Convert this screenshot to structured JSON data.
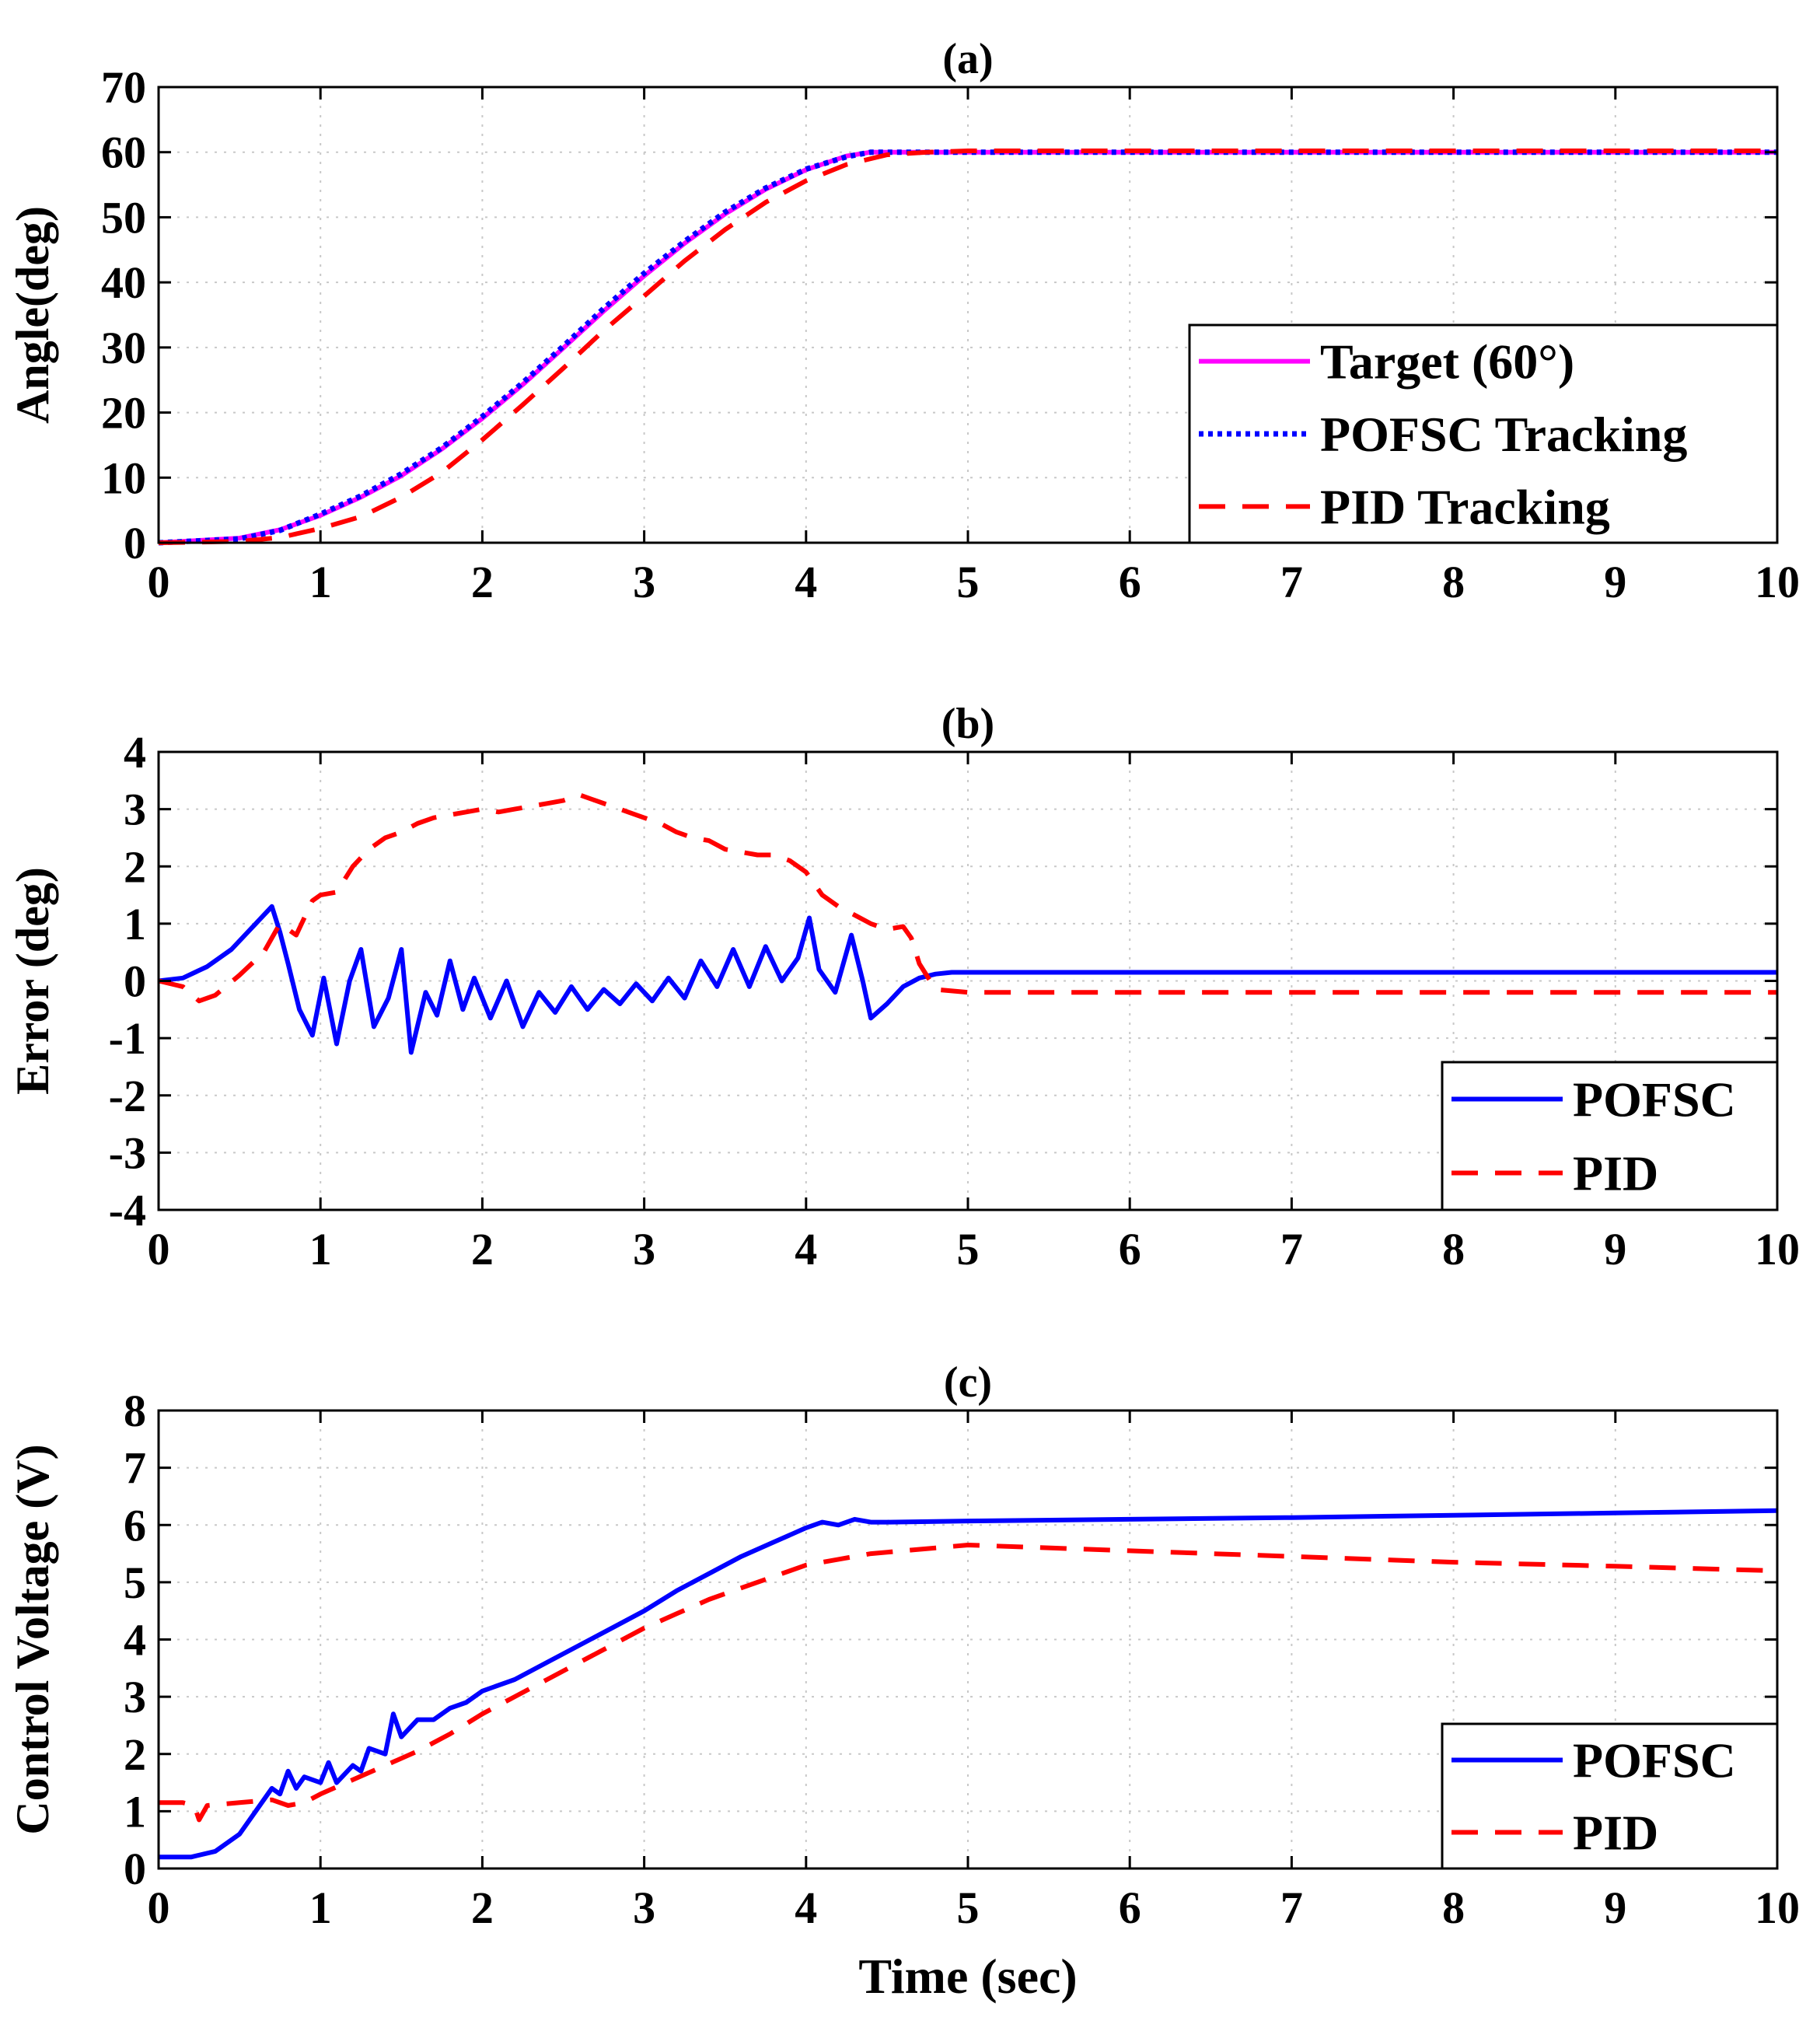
{
  "chart_data": [
    {
      "type": "line",
      "title": "(a)",
      "xlabel": "",
      "ylabel": "Angle(deg)",
      "xlim": [
        0,
        10
      ],
      "ylim": [
        0,
        70
      ],
      "xticks": [
        0,
        1,
        2,
        3,
        4,
        5,
        6,
        7,
        8,
        9,
        10
      ],
      "yticks": [
        0,
        10,
        20,
        30,
        40,
        50,
        60,
        70
      ],
      "grid": true,
      "legend_position": "bottom-right",
      "series": [
        {
          "name": "Target (60°)",
          "color": "#ff00ff",
          "style": "solid",
          "x": [
            0,
            0.5,
            0.75,
            1.0,
            1.25,
            1.5,
            1.75,
            2.0,
            2.25,
            2.5,
            2.75,
            3.0,
            3.25,
            3.5,
            3.75,
            4.0,
            4.25,
            4.4,
            4.6,
            5.0,
            6,
            7,
            8,
            9,
            10
          ],
          "y": [
            0,
            0.7,
            2.0,
            4.2,
            7.0,
            10.3,
            14.4,
            19.1,
            24.3,
            29.9,
            35.6,
            41.0,
            46.0,
            50.5,
            54.3,
            57.3,
            59.4,
            60,
            60,
            60,
            60,
            60,
            60,
            60,
            60
          ]
        },
        {
          "name": "POFSC Tracking",
          "color": "#0000ff",
          "style": "dotted",
          "x": [
            0,
            0.5,
            0.75,
            1.0,
            1.25,
            1.5,
            1.75,
            2.0,
            2.25,
            2.5,
            2.75,
            3.0,
            3.25,
            3.5,
            3.75,
            4.0,
            4.25,
            4.4,
            4.6,
            5.0,
            6,
            7,
            8,
            9,
            10
          ],
          "y": [
            0,
            0.6,
            1.9,
            4.4,
            7.2,
            10.6,
            14.6,
            19.4,
            24.6,
            30.2,
            36.0,
            41.4,
            46.3,
            50.8,
            54.5,
            57.4,
            59.3,
            60,
            60,
            60,
            60,
            60,
            60,
            60,
            60
          ]
        },
        {
          "name": "PID Tracking",
          "color": "#ff0000",
          "style": "dashed",
          "x": [
            0,
            0.5,
            0.75,
            1.0,
            1.25,
            1.5,
            1.75,
            2.0,
            2.25,
            2.5,
            2.75,
            3.0,
            3.25,
            3.5,
            3.75,
            4.0,
            4.25,
            4.5,
            4.75,
            5.0,
            6,
            7,
            8,
            9,
            10
          ],
          "y": [
            0,
            0.2,
            0.8,
            2.2,
            4.0,
            7.0,
            10.8,
            15.8,
            21.2,
            26.8,
            32.6,
            37.9,
            43.3,
            48.1,
            52.3,
            55.6,
            58.1,
            59.6,
            60,
            60.2,
            60.2,
            60.2,
            60.2,
            60.2,
            60.2
          ]
        }
      ]
    },
    {
      "type": "line",
      "title": "(b)",
      "xlabel": "",
      "ylabel": "Error (deg)",
      "xlim": [
        0,
        10
      ],
      "ylim": [
        -4,
        4
      ],
      "xticks": [
        0,
        1,
        2,
        3,
        4,
        5,
        6,
        7,
        8,
        9,
        10
      ],
      "yticks": [
        -4,
        -3,
        -2,
        -1,
        0,
        1,
        2,
        3,
        4
      ],
      "grid": true,
      "legend_position": "bottom-right",
      "series": [
        {
          "name": "POFSC",
          "color": "#0000ff",
          "style": "solid",
          "x": [
            0,
            0.15,
            0.3,
            0.45,
            0.6,
            0.7,
            0.75,
            0.8,
            0.87,
            0.95,
            1.02,
            1.1,
            1.18,
            1.25,
            1.33,
            1.42,
            1.5,
            1.56,
            1.65,
            1.72,
            1.8,
            1.88,
            1.95,
            2.05,
            2.15,
            2.25,
            2.35,
            2.45,
            2.55,
            2.65,
            2.75,
            2.85,
            2.95,
            3.05,
            3.15,
            3.25,
            3.35,
            3.45,
            3.55,
            3.65,
            3.75,
            3.85,
            3.95,
            4.02,
            4.08,
            4.18,
            4.28,
            4.35,
            4.4,
            4.5,
            4.6,
            4.7,
            4.8,
            4.9,
            5.0,
            6,
            7,
            8,
            9,
            10
          ],
          "y": [
            0,
            0.05,
            0.25,
            0.55,
            1.0,
            1.3,
            0.85,
            0.3,
            -0.5,
            -0.95,
            0.05,
            -1.1,
            0.0,
            0.55,
            -0.8,
            -0.3,
            0.55,
            -1.25,
            -0.2,
            -0.6,
            0.35,
            -0.5,
            0.05,
            -0.65,
            0.0,
            -0.8,
            -0.2,
            -0.55,
            -0.1,
            -0.5,
            -0.15,
            -0.4,
            -0.05,
            -0.35,
            0.05,
            -0.3,
            0.35,
            -0.1,
            0.55,
            -0.1,
            0.6,
            0.0,
            0.4,
            1.1,
            0.2,
            -0.2,
            0.8,
            0.0,
            -0.65,
            -0.4,
            -0.1,
            0.05,
            0.12,
            0.15,
            0.15,
            0.15,
            0.15,
            0.15,
            0.15,
            0.15
          ]
        },
        {
          "name": "PID",
          "color": "#ff0000",
          "style": "dashed",
          "x": [
            0,
            0.15,
            0.25,
            0.35,
            0.5,
            0.65,
            0.75,
            0.85,
            0.95,
            1.0,
            1.1,
            1.2,
            1.3,
            1.4,
            1.5,
            1.6,
            1.7,
            1.8,
            1.9,
            2.0,
            2.1,
            2.2,
            2.3,
            2.4,
            2.5,
            2.6,
            2.7,
            2.8,
            2.9,
            3.0,
            3.1,
            3.2,
            3.3,
            3.4,
            3.5,
            3.6,
            3.7,
            3.8,
            3.9,
            4.0,
            4.1,
            4.2,
            4.3,
            4.4,
            4.5,
            4.6,
            4.65,
            4.7,
            4.8,
            5.0,
            6,
            7,
            8,
            9,
            10
          ],
          "y": [
            0,
            -0.1,
            -0.35,
            -0.25,
            0.1,
            0.5,
            1.0,
            0.8,
            1.4,
            1.5,
            1.55,
            2.0,
            2.3,
            2.5,
            2.6,
            2.75,
            2.85,
            2.9,
            2.95,
            3.0,
            2.95,
            3.0,
            3.05,
            3.1,
            3.15,
            3.25,
            3.15,
            3.05,
            2.95,
            2.85,
            2.75,
            2.6,
            2.5,
            2.45,
            2.3,
            2.25,
            2.2,
            2.2,
            2.1,
            1.9,
            1.5,
            1.3,
            1.15,
            1.0,
            0.9,
            0.95,
            0.75,
            0.3,
            -0.15,
            -0.2,
            -0.2,
            -0.2,
            -0.2,
            -0.2,
            -0.2
          ]
        }
      ]
    },
    {
      "type": "line",
      "title": "(c)",
      "xlabel": "Time (sec)",
      "ylabel": "Control Voltage (V)",
      "xlim": [
        0,
        10
      ],
      "ylim": [
        0,
        8
      ],
      "xticks": [
        0,
        1,
        2,
        3,
        4,
        5,
        6,
        7,
        8,
        9,
        10
      ],
      "yticks": [
        0,
        1,
        2,
        3,
        4,
        5,
        6,
        7,
        8
      ],
      "grid": true,
      "legend_position": "bottom-right",
      "series": [
        {
          "name": "POFSC",
          "color": "#0000ff",
          "style": "solid",
          "x": [
            0,
            0.2,
            0.35,
            0.5,
            0.6,
            0.7,
            0.75,
            0.8,
            0.85,
            0.9,
            1.0,
            1.05,
            1.1,
            1.2,
            1.25,
            1.3,
            1.4,
            1.45,
            1.5,
            1.6,
            1.7,
            1.8,
            1.9,
            2.0,
            2.2,
            2.4,
            2.6,
            2.8,
            3.0,
            3.2,
            3.4,
            3.6,
            3.8,
            4.0,
            4.1,
            4.2,
            4.3,
            4.4,
            4.5,
            5.0,
            6,
            7,
            8,
            9,
            10
          ],
          "y": [
            0.2,
            0.2,
            0.3,
            0.6,
            1.0,
            1.4,
            1.3,
            1.7,
            1.4,
            1.6,
            1.5,
            1.85,
            1.5,
            1.8,
            1.7,
            2.1,
            2.0,
            2.7,
            2.3,
            2.6,
            2.6,
            2.8,
            2.9,
            3.1,
            3.3,
            3.6,
            3.9,
            4.2,
            4.5,
            4.85,
            5.15,
            5.45,
            5.7,
            5.95,
            6.05,
            6.0,
            6.1,
            6.05,
            6.05,
            6.07,
            6.1,
            6.13,
            6.17,
            6.21,
            6.25
          ]
        },
        {
          "name": "PID",
          "color": "#ff0000",
          "style": "dashed",
          "x": [
            0,
            0.15,
            0.22,
            0.25,
            0.3,
            0.5,
            0.7,
            0.8,
            0.9,
            1.0,
            1.2,
            1.4,
            1.6,
            1.8,
            2.0,
            2.2,
            2.4,
            2.6,
            2.8,
            3.0,
            3.2,
            3.4,
            3.6,
            3.8,
            4.0,
            4.2,
            4.4,
            4.6,
            4.8,
            5.0,
            6,
            7,
            8,
            9,
            10
          ],
          "y": [
            1.15,
            1.15,
            1.1,
            0.85,
            1.1,
            1.15,
            1.2,
            1.1,
            1.15,
            1.3,
            1.55,
            1.8,
            2.05,
            2.35,
            2.7,
            3.0,
            3.3,
            3.6,
            3.9,
            4.2,
            4.45,
            4.7,
            4.9,
            5.1,
            5.3,
            5.4,
            5.5,
            5.55,
            5.6,
            5.65,
            5.55,
            5.45,
            5.35,
            5.28,
            5.2
          ]
        }
      ]
    }
  ]
}
